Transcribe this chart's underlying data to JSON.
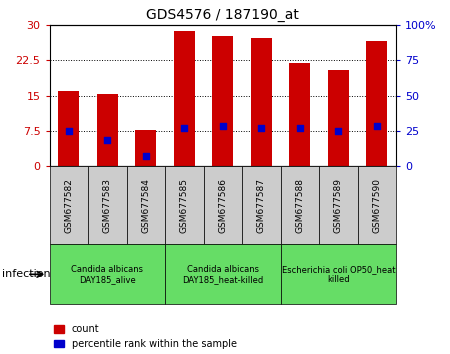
{
  "title": "GDS4576 / 187190_at",
  "samples": [
    "GSM677582",
    "GSM677583",
    "GSM677584",
    "GSM677585",
    "GSM677586",
    "GSM677587",
    "GSM677588",
    "GSM677589",
    "GSM677590"
  ],
  "counts": [
    16.0,
    15.3,
    7.8,
    28.7,
    27.6,
    27.2,
    21.8,
    20.4,
    26.5
  ],
  "percentile_ranks_left": [
    7.5,
    5.5,
    2.2,
    8.2,
    8.5,
    8.2,
    8.2,
    7.5,
    8.5
  ],
  "left_ylim": [
    0,
    30
  ],
  "right_ylim": [
    0,
    100
  ],
  "left_yticks": [
    0,
    7.5,
    15,
    22.5,
    30
  ],
  "right_yticks": [
    0,
    25,
    50,
    75,
    100
  ],
  "left_yticklabels": [
    "0",
    "7.5",
    "15",
    "22.5",
    "30"
  ],
  "right_yticklabels": [
    "0",
    "25",
    "50",
    "75",
    "100%"
  ],
  "bar_color": "#cc0000",
  "dot_color": "#0000cc",
  "groups": [
    {
      "label": "Candida albicans\nDAY185_alive",
      "start": 0,
      "end": 3
    },
    {
      "label": "Candida albicans\nDAY185_heat-killed",
      "start": 3,
      "end": 6
    },
    {
      "label": "Escherichia coli OP50_heat\nkilled",
      "start": 6,
      "end": 9
    }
  ],
  "group_color": "#66dd66",
  "group_label_fontsize": 6.0,
  "infection_label": "infection",
  "legend_count_label": "count",
  "legend_percentile_label": "percentile rank within the sample",
  "bar_width": 0.55,
  "background_color": "#ffffff",
  "plot_bg_color": "#ffffff",
  "tick_bg_color": "#cccccc"
}
